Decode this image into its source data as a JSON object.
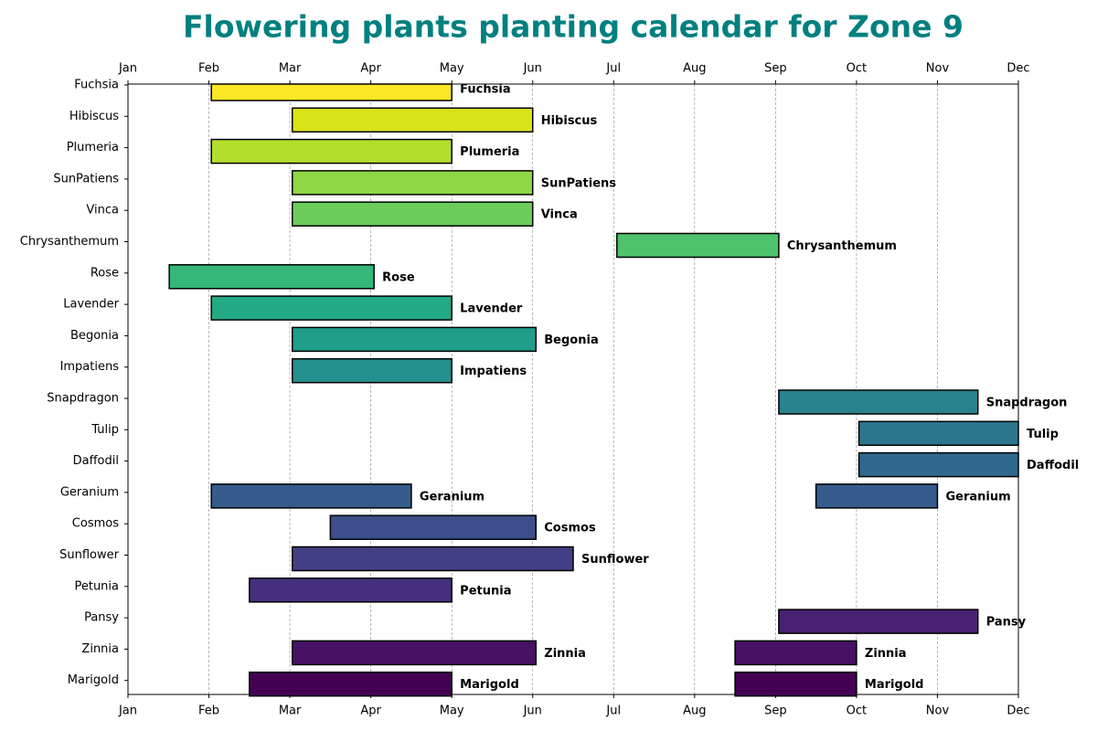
{
  "chart_data": {
    "type": "gantt",
    "title": "Flowering plants planting calendar for Zone 9",
    "categories": [
      "Fuchsia",
      "Hibiscus",
      "Plumeria",
      "SunPatiens",
      "Vinca",
      "Chrysanthemum",
      "Rose",
      "Lavender",
      "Begonia",
      "Impatiens",
      "Snapdragon",
      "Tulip",
      "Daffodil",
      "Geranium",
      "Cosmos",
      "Sunflower",
      "Petunia",
      "Pansy",
      "Zinnia",
      "Marigold"
    ],
    "segments": [
      [
        [
          1.03,
          4.0
        ]
      ],
      [
        [
          2.03,
          5.0
        ]
      ],
      [
        [
          1.03,
          4.0
        ]
      ],
      [
        [
          2.03,
          5.0
        ]
      ],
      [
        [
          2.03,
          5.0
        ]
      ],
      [
        [
          6.04,
          8.04
        ]
      ],
      [
        [
          0.51,
          3.04
        ]
      ],
      [
        [
          1.03,
          4.0
        ]
      ],
      [
        [
          2.03,
          5.04
        ]
      ],
      [
        [
          2.03,
          4.0
        ]
      ],
      [
        [
          8.04,
          10.5
        ]
      ],
      [
        [
          9.03,
          11.0
        ]
      ],
      [
        [
          9.03,
          11.0
        ]
      ],
      [
        [
          1.03,
          3.5
        ],
        [
          8.5,
          10.0
        ]
      ],
      [
        [
          2.5,
          5.04
        ]
      ],
      [
        [
          2.03,
          5.5
        ]
      ],
      [
        [
          1.5,
          4.0
        ]
      ],
      [
        [
          8.04,
          10.5
        ]
      ],
      [
        [
          2.03,
          5.04
        ],
        [
          7.5,
          9.0
        ]
      ],
      [
        [
          1.5,
          4.0
        ],
        [
          7.5,
          9.0
        ]
      ]
    ],
    "colors": [
      "#fde725",
      "#dae319",
      "#b4de2c",
      "#8fd744",
      "#6ccd5a",
      "#4ec36b",
      "#35b779",
      "#23a983",
      "#1f9d8a",
      "#23908d",
      "#27838e",
      "#2c768e",
      "#30698e",
      "#365c8d",
      "#3c4f8a",
      "#423f85",
      "#46307e",
      "#482173",
      "#471164",
      "#440154"
    ],
    "xlim": [
      0,
      11
    ],
    "xticks": [
      {
        "value": 0,
        "label": "Jan"
      },
      {
        "value": 1,
        "label": "Feb"
      },
      {
        "value": 2,
        "label": "Mar"
      },
      {
        "value": 3,
        "label": "Apr"
      },
      {
        "value": 4,
        "label": "May"
      },
      {
        "value": 5,
        "label": "Jun"
      },
      {
        "value": 6,
        "label": "Jul"
      },
      {
        "value": 7,
        "label": "Aug"
      },
      {
        "value": 8,
        "label": "Sep"
      },
      {
        "value": 9,
        "label": "Oct"
      },
      {
        "value": 10,
        "label": "Nov"
      },
      {
        "value": 11,
        "label": "Dec"
      }
    ],
    "grid": true
  }
}
